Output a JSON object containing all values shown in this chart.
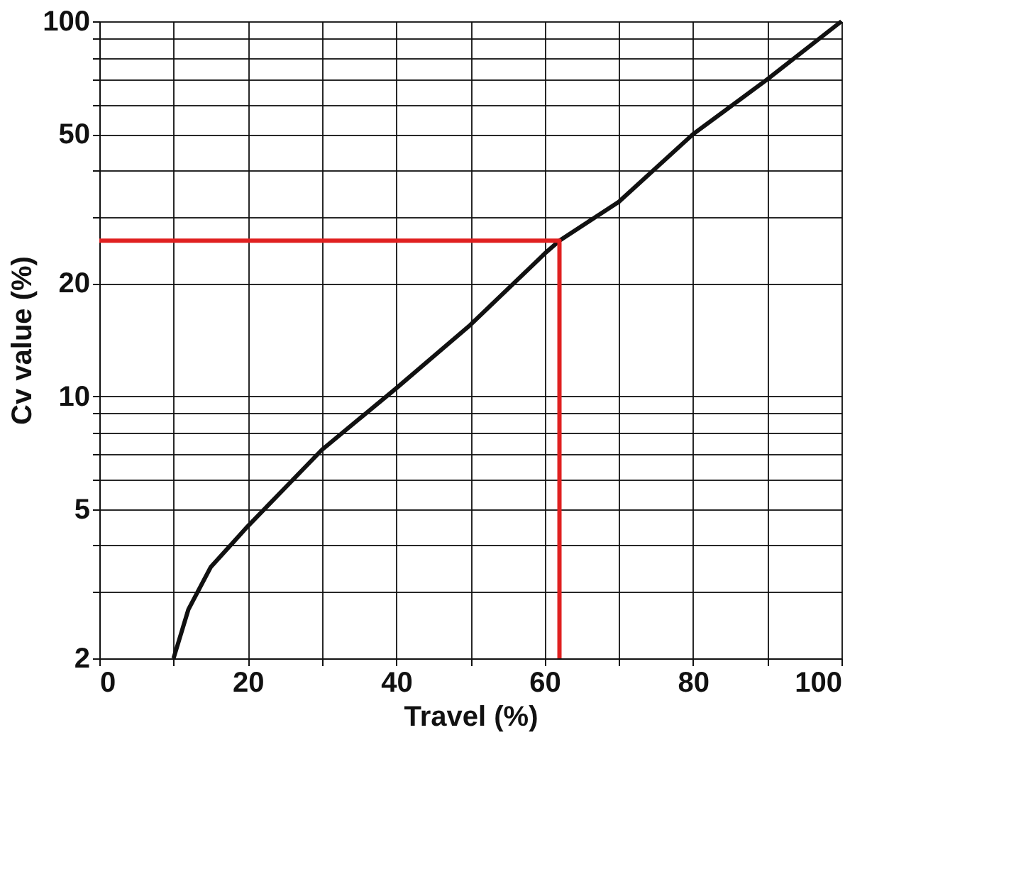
{
  "chart_data": {
    "type": "line",
    "xlabel": "Travel (%)",
    "ylabel": "Cv value (%)",
    "log": "y",
    "xlim": [
      0,
      100
    ],
    "ylim": [
      2,
      100
    ],
    "xticks": [
      0,
      {
        "value": 10,
        "label": null
      },
      20,
      {
        "value": 30,
        "label": null
      },
      40,
      {
        "value": 50,
        "label": null
      },
      60,
      {
        "value": 70,
        "label": null
      },
      80,
      {
        "value": 90,
        "label": null
      },
      100
    ],
    "yticks": [
      2,
      {
        "value": 3,
        "label": null
      },
      {
        "value": 4,
        "label": null
      },
      5,
      {
        "value": 6,
        "label": null
      },
      {
        "value": 7,
        "label": null
      },
      {
        "value": 8,
        "label": null
      },
      {
        "value": 9,
        "label": null
      },
      10,
      20,
      {
        "value": 30,
        "label": null
      },
      {
        "value": 40,
        "label": null
      },
      50,
      {
        "value": 60,
        "label": null
      },
      {
        "value": 70,
        "label": null
      },
      {
        "value": 80,
        "label": null
      },
      {
        "value": 90,
        "label": null
      },
      100
    ],
    "grid": true,
    "legend": false,
    "marker": "none",
    "line_style": "solid",
    "series": [
      {
        "color": "#111111",
        "x": [
          10,
          12,
          15,
          20,
          30,
          40,
          50,
          60,
          62,
          70,
          80,
          90,
          100
        ],
        "values": [
          2,
          2.7,
          3.5,
          4.5,
          7.2,
          10.5,
          15.5,
          24,
          26,
          33,
          50,
          70,
          100
        ]
      },
      {
        "color": "#e02020",
        "x": [
          0,
          62,
          62
        ],
        "values": [
          26,
          26,
          2
        ]
      }
    ]
  }
}
